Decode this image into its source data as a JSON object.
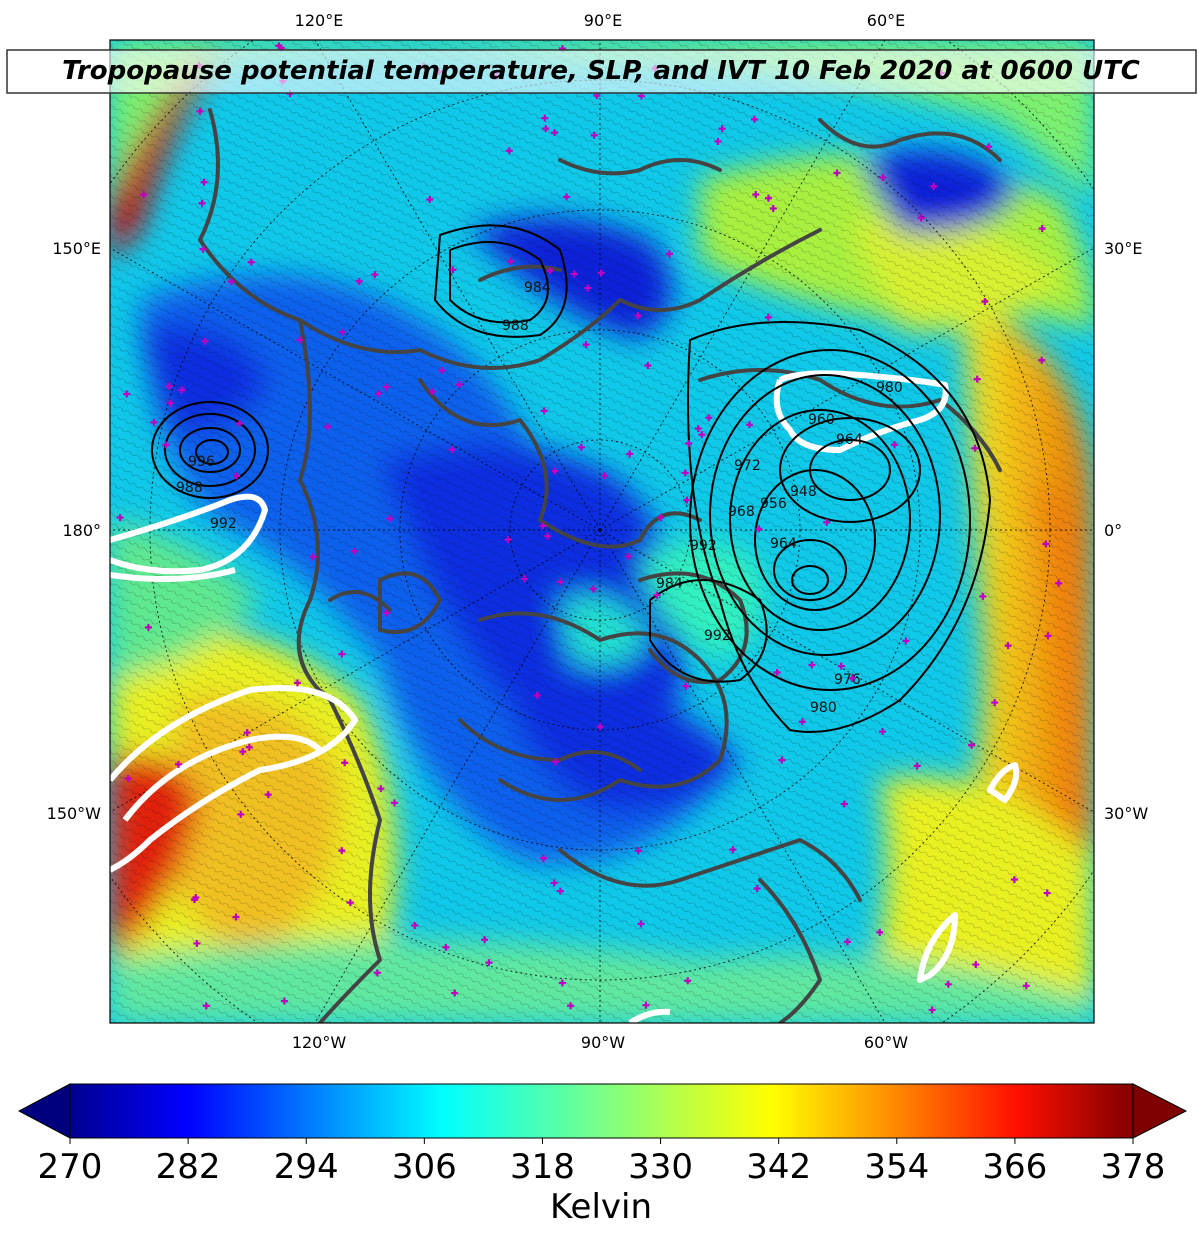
{
  "title": "Tropopause potential temperature, SLP, and IVT 10 Feb 2020 at 0600 UTC",
  "map": {
    "top_labels": [
      "120°E",
      "90°E",
      "60°E"
    ],
    "bottom_labels": [
      "120°W",
      "90°W",
      "60°W"
    ],
    "left_labels": [
      "150°E",
      "180°",
      "150°W"
    ],
    "right_labels": [
      "30°E",
      "0°",
      "30°W"
    ],
    "slp_contour_labels": [
      "988",
      "992",
      "996",
      "948",
      "956",
      "960",
      "964",
      "968",
      "972",
      "976",
      "980",
      "984",
      "988",
      "992",
      "984",
      "992",
      "980",
      "964"
    ],
    "colors": {
      "deep_blue": "#0a1fd8",
      "blue": "#0a6cf0",
      "cyan": "#10d8f0",
      "green": "#3cf0a0",
      "yellow_green": "#a8f040",
      "yellow": "#f0f020",
      "orange": "#f0a010",
      "red": "#d01010",
      "dark_red": "#800000",
      "coast": "#444444",
      "ivt": "#ffffff",
      "markers": "#c000c0"
    }
  },
  "colorbar": {
    "ticks": [
      "270",
      "282",
      "294",
      "306",
      "318",
      "330",
      "342",
      "354",
      "366",
      "378"
    ],
    "label": "Kelvin",
    "colormap": [
      "#00008f",
      "#0000ff",
      "#0080ff",
      "#00ffff",
      "#80ff80",
      "#ffff00",
      "#ff8000",
      "#ff0000",
      "#800000"
    ]
  }
}
